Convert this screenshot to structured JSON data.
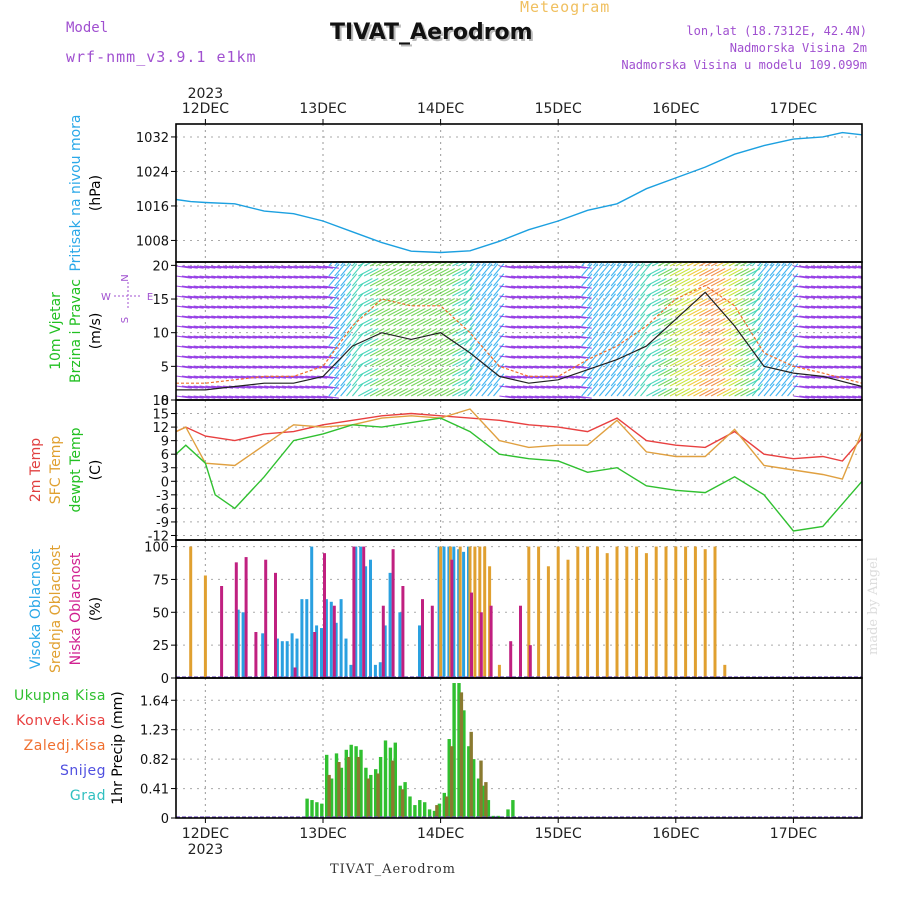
{
  "header": {
    "title": "TIVAT_Aerodrom",
    "meteogram": "Meteogram",
    "model_label": "Model",
    "model_value": "wrf-nmm_v3.9.1  e1km",
    "lonlat": "lon,lat (18.7312E, 42.4N)",
    "altitude": "Nadmorska Visina 2m",
    "model_altitude": "Nadmorska Visina u modelu 109.099m"
  },
  "footer": {
    "station": "TIVAT_Aerodrom",
    "credit": "made by Angel"
  },
  "time_axis": {
    "year": "2023",
    "labels": [
      "12DEC",
      "13DEC",
      "14DEC",
      "15DEC",
      "16DEC",
      "17DEC"
    ],
    "start_hour": -6,
    "end_hour": 134
  },
  "chart_data": [
    {
      "type": "line",
      "panel": "pressure",
      "ylabel_parts": [
        {
          "text": "Pritisak na nivou mora",
          "color": "#2aa8e8"
        },
        {
          "text": "(hPa)",
          "color": "#000000"
        }
      ],
      "ylim": [
        1003,
        1035
      ],
      "yticks": [
        1008,
        1016,
        1024,
        1032
      ],
      "grid": true,
      "series": [
        {
          "color": "#1ca0e0",
          "x": [
            -6,
            -3,
            0,
            6,
            12,
            18,
            24,
            30,
            36,
            42,
            48,
            54,
            60,
            66,
            72,
            78,
            84,
            90,
            96,
            102,
            108,
            114,
            120,
            126,
            130,
            134
          ],
          "values": [
            1017.5,
            1017.0,
            1016.8,
            1016.5,
            1014.8,
            1014.2,
            1012.5,
            1010.0,
            1007.5,
            1005.5,
            1005.2,
            1005.6,
            1007.8,
            1010.5,
            1012.5,
            1015.0,
            1016.5,
            1020.0,
            1022.5,
            1025.0,
            1028.0,
            1030.0,
            1031.5,
            1032.0,
            1033.0,
            1032.5
          ]
        }
      ]
    },
    {
      "type": "line",
      "panel": "wind",
      "ylabel_parts": [
        {
          "text": "10m Vjetar",
          "color": "#22c022"
        },
        {
          "text": "Brzina i Pravac",
          "color": "#22c022"
        },
        {
          "text": "(m/s)",
          "color": "#000000"
        }
      ],
      "compass": {
        "N": "N",
        "E": "E",
        "W": "W",
        "S": "S"
      },
      "ylim": [
        0,
        20.5
      ],
      "yticks": [
        0,
        5,
        10,
        15,
        20
      ],
      "grid": true,
      "series": [
        {
          "name": "speed",
          "color": "#222222",
          "x": [
            -6,
            0,
            6,
            12,
            18,
            24,
            30,
            36,
            42,
            48,
            54,
            60,
            66,
            72,
            78,
            84,
            90,
            96,
            102,
            108,
            114,
            120,
            126,
            134
          ],
          "values": [
            1.5,
            1.5,
            2.0,
            2.5,
            2.5,
            3.5,
            8.0,
            10.0,
            9.0,
            10.0,
            7.0,
            3.5,
            2.5,
            3.0,
            4.5,
            6.0,
            8.0,
            12.0,
            16.0,
            11.0,
            5.0,
            4.0,
            3.5,
            2.0
          ]
        },
        {
          "name": "gust",
          "color": "#f07030",
          "x": [
            -6,
            0,
            6,
            12,
            18,
            24,
            30,
            36,
            42,
            48,
            54,
            60,
            66,
            72,
            78,
            84,
            90,
            96,
            102,
            108,
            114,
            120,
            126,
            134
          ],
          "values": [
            2.5,
            2.5,
            3.0,
            3.5,
            3.5,
            5.0,
            11.0,
            15.0,
            14.0,
            14.0,
            10.0,
            5.0,
            3.5,
            3.5,
            6.0,
            8.0,
            11.0,
            15.0,
            17.0,
            14.0,
            7.0,
            5.0,
            4.0,
            2.5
          ]
        }
      ]
    },
    {
      "type": "line",
      "panel": "temperature",
      "ylabel_parts": [
        {
          "text": "2m Temp",
          "color": "#e04040"
        },
        {
          "text": "SFC Temp",
          "color": "#e0a030"
        },
        {
          "text": "dewpt Temp",
          "color": "#22c022"
        },
        {
          "text": "(C)",
          "color": "#000000"
        }
      ],
      "ylim": [
        -13,
        18
      ],
      "yticks": [
        -12,
        -9,
        -6,
        -3,
        0,
        3,
        6,
        9,
        12,
        15,
        18
      ],
      "grid": true,
      "series": [
        {
          "name": "2m",
          "color": "#e84040",
          "x": [
            -6,
            -4,
            0,
            6,
            12,
            18,
            24,
            30,
            36,
            42,
            48,
            54,
            60,
            66,
            72,
            78,
            84,
            90,
            96,
            102,
            108,
            114,
            120,
            126,
            130,
            134
          ],
          "values": [
            11,
            12,
            10,
            9,
            10.5,
            11,
            12.5,
            13.5,
            14.5,
            15,
            14.5,
            14,
            13.5,
            12.5,
            12,
            11,
            14,
            9,
            8,
            7.5,
            11,
            6,
            5,
            5.5,
            4.5,
            9.5
          ]
        },
        {
          "name": "sfc",
          "color": "#e0a040",
          "x": [
            -6,
            -4,
            0,
            6,
            12,
            18,
            24,
            30,
            36,
            42,
            48,
            54,
            60,
            66,
            72,
            78,
            84,
            90,
            96,
            102,
            108,
            114,
            120,
            126,
            130,
            134
          ],
          "values": [
            11,
            12,
            4,
            3.5,
            8,
            12.5,
            12,
            12.5,
            14,
            14.5,
            14,
            16,
            9,
            7.5,
            8,
            8,
            13.5,
            6.5,
            5.5,
            5.5,
            11.5,
            3.5,
            2.5,
            1.5,
            0.5,
            11
          ]
        },
        {
          "name": "dewpt",
          "color": "#30c030",
          "x": [
            -6,
            -4,
            0,
            2,
            6,
            12,
            18,
            24,
            30,
            36,
            42,
            48,
            54,
            60,
            66,
            72,
            78,
            84,
            90,
            96,
            102,
            108,
            114,
            120,
            126,
            130,
            134
          ],
          "values": [
            6,
            8,
            4,
            -3,
            -6,
            1,
            9,
            10.5,
            12.5,
            12,
            13,
            14,
            11,
            6,
            5,
            4.5,
            2,
            3,
            -1,
            -2,
            -2.5,
            1,
            -3,
            -11,
            -10,
            -5,
            0
          ]
        }
      ]
    },
    {
      "type": "bar",
      "panel": "cloud",
      "ylabel_parts": [
        {
          "text": "Visoka Oblacnost",
          "color": "#2aa8e8"
        },
        {
          "text": "Srednja Oblacnost",
          "color": "#e0a030"
        },
        {
          "text": "Niska Oblacnost",
          "color": "#d02090"
        },
        {
          "text": "(%)",
          "color": "#000000"
        }
      ],
      "ylim": [
        0,
        105
      ],
      "yticks": [
        0,
        25,
        50,
        75,
        100
      ],
      "grid": true,
      "series": [
        {
          "name": "high",
          "color": "#2aa0e0",
          "x": [
            7,
            8,
            12,
            15,
            16,
            17,
            18,
            19,
            20,
            21,
            22,
            23,
            24,
            25,
            26,
            27,
            28,
            29,
            30,
            31,
            32,
            33,
            34,
            35,
            36,
            37,
            38,
            40,
            44,
            48,
            49,
            50,
            51,
            52,
            53,
            54
          ],
          "values": [
            52,
            50,
            34,
            30,
            28,
            28,
            34,
            30,
            60,
            60,
            100,
            40,
            38,
            60,
            58,
            42,
            60,
            30,
            10,
            100,
            100,
            85,
            90,
            10,
            12,
            40,
            80,
            50,
            40,
            100,
            100,
            100,
            100,
            98,
            96,
            100
          ]
        },
        {
          "name": "mid",
          "color": "#e0a030",
          "x": [
            -3,
            0,
            48,
            50,
            52,
            54,
            55,
            56,
            57,
            58,
            60,
            66,
            68,
            70,
            72,
            74,
            76,
            78,
            80,
            82,
            84,
            86,
            88,
            90,
            92,
            94,
            96,
            98,
            100,
            102,
            104,
            106
          ],
          "values": [
            100,
            78,
            100,
            100,
            100,
            100,
            100,
            100,
            100,
            85,
            10,
            100,
            100,
            85,
            100,
            90,
            100,
            100,
            100,
            95,
            100,
            100,
            100,
            95,
            100,
            100,
            100,
            100,
            100,
            98,
            100,
            10
          ]
        },
        {
          "name": "low",
          "color": "#c02080",
          "x": [
            3,
            6,
            8,
            10,
            12,
            14,
            18,
            22,
            24,
            26,
            30,
            32,
            36,
            38,
            40,
            44,
            46,
            50,
            54,
            56,
            58,
            62,
            64,
            66
          ],
          "values": [
            70,
            88,
            92,
            35,
            90,
            80,
            8,
            35,
            95,
            55,
            100,
            100,
            55,
            98,
            70,
            60,
            55,
            90,
            65,
            50,
            55,
            28,
            55,
            25
          ]
        }
      ]
    },
    {
      "type": "bar",
      "panel": "precip",
      "ylabel_parts": [
        {
          "text": "1hr Precip (mm)",
          "color": "#000000"
        }
      ],
      "legend": [
        {
          "text": "Ukupna Kisa",
          "color": "#30c030"
        },
        {
          "text": "Konvek.Kisa",
          "color": "#e84040"
        },
        {
          "text": "Zaledj.Kisa",
          "color": "#f07030"
        },
        {
          "text": "Snijeg",
          "color": "#5050e0"
        },
        {
          "text": "Grad",
          "color": "#30c0c0"
        }
      ],
      "ylim": [
        0,
        1.95
      ],
      "yticks": [
        0,
        0.41,
        0.82,
        1.23,
        1.64
      ],
      "grid": true,
      "series": [
        {
          "name": "total",
          "color": "#30c030",
          "x": [
            21,
            22,
            23,
            24,
            25,
            26,
            27,
            28,
            29,
            30,
            31,
            32,
            33,
            34,
            35,
            36,
            37,
            38,
            39,
            40,
            41,
            42,
            43,
            44,
            45,
            46,
            47,
            48,
            49,
            50,
            51,
            52,
            53,
            54,
            55,
            56,
            57,
            58,
            59,
            60,
            62,
            63
          ],
          "values": [
            0.27,
            0.25,
            0.22,
            0.2,
            0.88,
            0.55,
            0.9,
            0.7,
            0.95,
            1.02,
            1.0,
            0.95,
            0.7,
            0.6,
            0.68,
            0.85,
            1.08,
            0.98,
            1.05,
            0.45,
            0.5,
            0.3,
            0.18,
            0.25,
            0.22,
            0.12,
            0.1,
            0.2,
            0.35,
            1.1,
            1.88,
            1.88,
            1.5,
            1.0,
            0.82,
            0.55,
            0.45,
            0.25,
            0.03,
            0.03,
            0.12,
            0.25
          ]
        },
        {
          "name": "convective",
          "color": "#8a7a30",
          "x": [
            25,
            27,
            29,
            31,
            33,
            35,
            38,
            40,
            47,
            49,
            50,
            52,
            54,
            56,
            57
          ],
          "values": [
            0.6,
            0.78,
            0.85,
            0.85,
            0.55,
            0.62,
            0.8,
            0.4,
            0.18,
            0.3,
            1.0,
            1.75,
            1.2,
            0.8,
            0.5
          ]
        }
      ]
    }
  ]
}
